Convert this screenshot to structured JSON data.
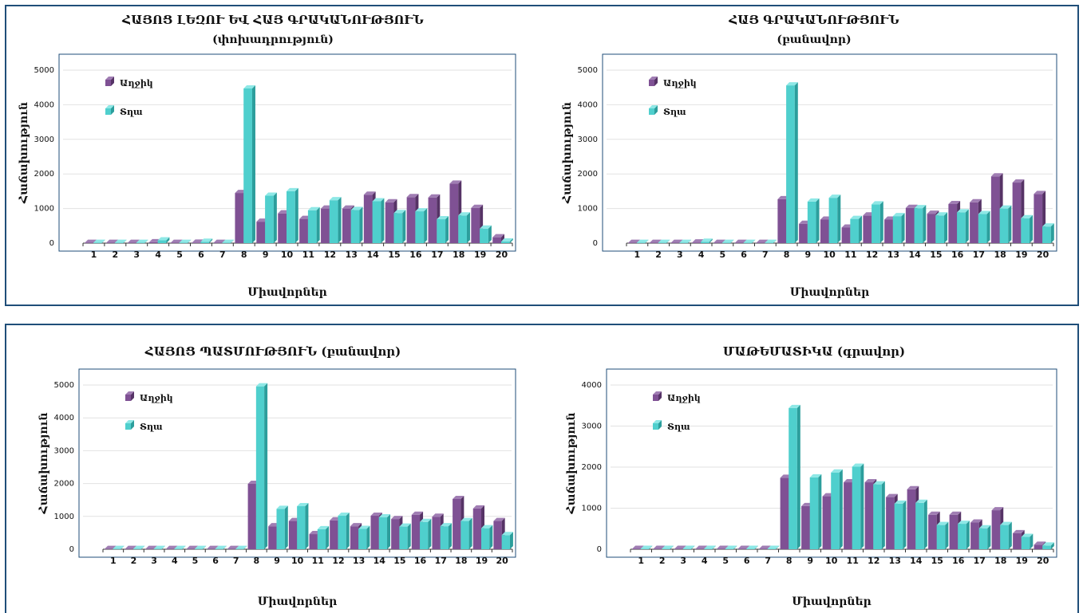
{
  "colors": {
    "purple_front": "#7f5194",
    "purple_side": "#563366",
    "purple_top": "#a07db3",
    "teal_front": "#4fcfcd",
    "teal_side": "#2c9e9c",
    "teal_top": "#8ee8e6",
    "frame": "#1f4e79",
    "plot_border": "#1f4e79",
    "grid": "#e2e2e2"
  },
  "chart_data": [
    {
      "type": "bar",
      "title": "ՀԱՅՈՑ ԼԵԶՈՒ ԵՎ ՀԱՅ ԳՐԱԿԱՆՈՒԹՅՈՒՆ",
      "subtitle": "(փոխադրություն)",
      "xlabel": "Միավորներ",
      "ylabel": "Հաճախություն",
      "ylim": [
        0,
        5000
      ],
      "yticks": [
        0,
        1000,
        2000,
        3000,
        4000,
        5000
      ],
      "categories": [
        "1",
        "2",
        "3",
        "4",
        "5",
        "6",
        "7",
        "8",
        "9",
        "10",
        "11",
        "12",
        "13",
        "14",
        "15",
        "16",
        "17",
        "18",
        "19",
        "20"
      ],
      "series": [
        {
          "name": "Աղջիկ",
          "values": [
            10,
            10,
            10,
            25,
            10,
            15,
            10,
            1450,
            620,
            860,
            700,
            1000,
            1000,
            1400,
            1180,
            1330,
            1320,
            1720,
            1020,
            170
          ]
        },
        {
          "name": "Տղա",
          "values": [
            10,
            10,
            10,
            80,
            10,
            40,
            10,
            4470,
            1370,
            1500,
            950,
            1240,
            960,
            1210,
            870,
            920,
            690,
            800,
            420,
            50
          ]
        }
      ],
      "legend": "top-left",
      "grid": true
    },
    {
      "type": "bar",
      "title": "ՀԱՅ ԳՐԱԿԱՆՈՒԹՅՈՒՆ",
      "subtitle": "(բանավոր)",
      "xlabel": "Միավորներ",
      "ylabel": "Հաճախություն",
      "ylim": [
        0,
        5000
      ],
      "yticks": [
        0,
        1000,
        2000,
        3000,
        4000,
        5000
      ],
      "categories": [
        "1",
        "2",
        "3",
        "4",
        "5",
        "6",
        "7",
        "8",
        "9",
        "10",
        "11",
        "12",
        "13",
        "14",
        "15",
        "16",
        "17",
        "18",
        "19",
        "20"
      ],
      "series": [
        {
          "name": "Աղջիկ",
          "values": [
            10,
            10,
            10,
            20,
            10,
            10,
            10,
            1270,
            560,
            680,
            450,
            800,
            680,
            1020,
            850,
            1130,
            1180,
            1930,
            1750,
            1420
          ]
        },
        {
          "name": "Տղա",
          "values": [
            10,
            10,
            10,
            40,
            10,
            10,
            10,
            4560,
            1200,
            1310,
            700,
            1120,
            780,
            1010,
            800,
            890,
            840,
            1000,
            720,
            480
          ]
        }
      ],
      "legend": "top-left",
      "grid": true
    },
    {
      "type": "bar",
      "title": "ՀԱՅՈՑ ՊԱՏՄՈՒԹՅՈՒՆ (բանավոր)",
      "subtitle": "",
      "xlabel": "Միավորներ",
      "ylabel": "Հաճախություն",
      "ylim": [
        0,
        5000
      ],
      "yticks": [
        0,
        1000,
        2000,
        3000,
        4000,
        5000
      ],
      "categories": [
        "1",
        "2",
        "3",
        "4",
        "5",
        "6",
        "7",
        "8",
        "9",
        "10",
        "11",
        "12",
        "13",
        "14",
        "15",
        "16",
        "17",
        "18",
        "19",
        "20"
      ],
      "series": [
        {
          "name": "Աղջիկ",
          "values": [
            10,
            10,
            10,
            10,
            10,
            10,
            10,
            1990,
            700,
            860,
            460,
            880,
            700,
            1020,
            920,
            1050,
            990,
            1530,
            1240,
            860
          ]
        },
        {
          "name": "Տղա",
          "values": [
            10,
            10,
            10,
            10,
            10,
            10,
            10,
            4960,
            1230,
            1310,
            610,
            1020,
            620,
            970,
            690,
            830,
            700,
            860,
            640,
            430
          ]
        }
      ],
      "legend": "top-left",
      "grid": true
    },
    {
      "type": "bar",
      "title": "ՄԱԹԵՄԱՏԻԿԱ (գրավոր)",
      "subtitle": "",
      "xlabel": "Միավորներ",
      "ylabel": "Հաճախություն",
      "ylim": [
        0,
        4000
      ],
      "yticks": [
        0,
        1000,
        2000,
        3000,
        4000
      ],
      "categories": [
        "1",
        "2",
        "3",
        "4",
        "5",
        "6",
        "7",
        "8",
        "9",
        "10",
        "11",
        "12",
        "13",
        "14",
        "15",
        "16",
        "17",
        "18",
        "19",
        "20"
      ],
      "series": [
        {
          "name": "Աղջիկ",
          "values": [
            10,
            10,
            10,
            10,
            10,
            10,
            10,
            1740,
            1050,
            1290,
            1630,
            1630,
            1270,
            1460,
            840,
            840,
            650,
            950,
            390,
            110
          ]
        },
        {
          "name": "Տղա",
          "values": [
            10,
            10,
            10,
            10,
            10,
            10,
            10,
            3440,
            1750,
            1870,
            2010,
            1580,
            1110,
            1130,
            590,
            620,
            510,
            590,
            300,
            90
          ]
        }
      ],
      "legend": "top-left",
      "grid": true
    }
  ]
}
